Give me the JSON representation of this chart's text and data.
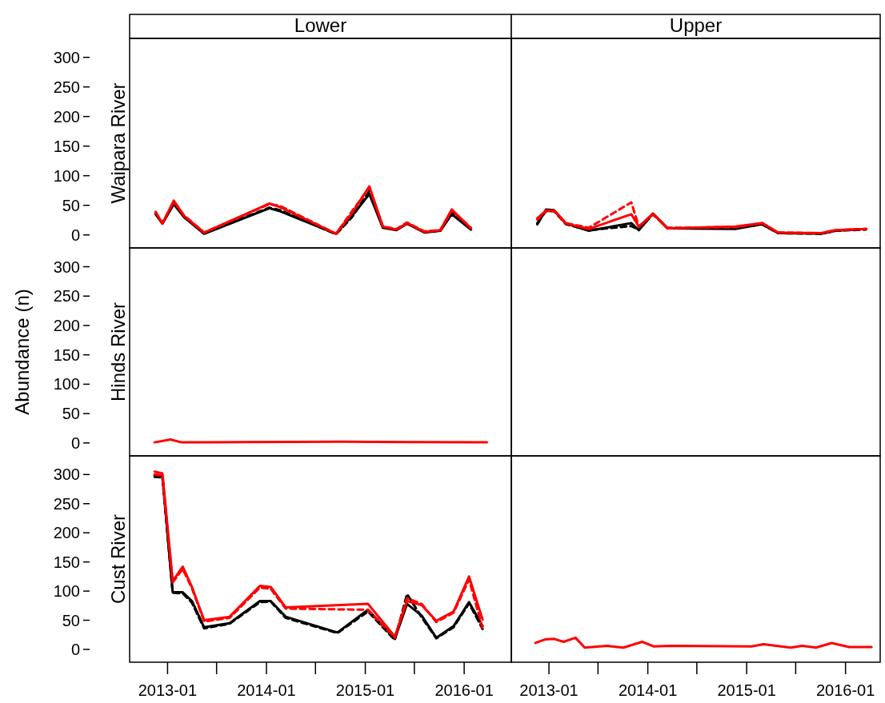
{
  "chart_data": [
    {
      "type": "line",
      "title": "Lower",
      "subtitle": "Waipara River",
      "tick_labels": "y",
      "xlim": [
        "2012-08-14",
        "2016-06-23"
      ],
      "ylim": [
        -22,
        332
      ],
      "yticks": [
        0,
        50,
        100,
        150,
        200,
        250,
        300
      ],
      "x": [
        "2012-11-18",
        "2012-12-13",
        "2013-01-24",
        "2013-03-03",
        "2013-05-16",
        "2014-01-12",
        "2014-02-20",
        "2014-09-15",
        "2014-11-13",
        "2015-01-16",
        "2015-03-07",
        "2015-04-26",
        "2015-06-04",
        "2015-08-07",
        "2015-10-05",
        "2015-11-16",
        "2016-01-26"
      ],
      "series": [
        {
          "color": "#000000",
          "line_style": "solid",
          "values": [
            35,
            19,
            52,
            30,
            2,
            45,
            40,
            2,
            32,
            69,
            12,
            8,
            19,
            4,
            7,
            35,
            9
          ]
        },
        {
          "color": "#000000",
          "line_style": "dashed",
          "values": [
            36,
            20,
            54,
            31,
            3,
            46,
            42,
            1,
            30,
            74,
            13,
            9,
            20,
            5,
            7,
            38,
            10
          ]
        },
        {
          "color": "#ff0000",
          "line_style": "solid",
          "values": [
            39,
            19,
            58,
            32,
            4,
            53,
            47,
            2,
            37,
            82,
            14,
            9,
            20,
            5,
            8,
            43,
            11
          ]
        },
        {
          "color": "#ff0000",
          "line_style": "dashed",
          "values": [
            38,
            20,
            56,
            33,
            4,
            52,
            49,
            2,
            40,
            80,
            14,
            10,
            21,
            6,
            8,
            41,
            12
          ]
        }
      ]
    },
    {
      "type": "line",
      "title": "Upper",
      "tick_labels": false,
      "xlim": [
        "2012-08-15",
        "2016-05-08"
      ],
      "ylim": [
        -22,
        332
      ],
      "x": [
        "2012-11-19",
        "2012-12-21",
        "2013-01-20",
        "2013-03-05",
        "2013-05-28",
        "2013-11-01",
        "2013-11-29",
        "2014-01-20",
        "2014-03-15",
        "2014-11-20",
        "2015-02-27",
        "2015-04-27",
        "2015-10-03",
        "2015-11-25",
        "2016-03-17"
      ],
      "series": [
        {
          "color": "#000000",
          "line_style": "solid",
          "values": [
            18,
            43,
            42,
            19,
            7,
            20,
            8,
            36,
            11,
            10,
            18,
            3,
            2,
            7,
            10
          ]
        },
        {
          "color": "#000000",
          "line_style": "dashed",
          "values": [
            20,
            40,
            40,
            18,
            8,
            15,
            9,
            35,
            11,
            11,
            18,
            3,
            2,
            7,
            9
          ]
        },
        {
          "color": "#ff0000",
          "line_style": "solid",
          "values": [
            28,
            41,
            41,
            19,
            10,
            35,
            14,
            36,
            11,
            14,
            20,
            4,
            3,
            8,
            10
          ]
        },
        {
          "color": "#ff0000",
          "line_style": "dashed",
          "values": [
            26,
            40,
            41,
            20,
            12,
            55,
            14,
            35,
            12,
            13,
            20,
            4,
            3,
            8,
            10
          ]
        }
      ]
    },
    {
      "type": "line",
      "subtitle": "Hinds River",
      "ylabel": "Abundance (n)",
      "tick_labels": "y",
      "xlim": [
        "2012-08-14",
        "2016-06-23"
      ],
      "ylim": [
        -22,
        332
      ],
      "yticks": [
        0,
        50,
        100,
        150,
        200,
        250,
        300
      ],
      "x": [
        "2012-11-14",
        "2013-01-12",
        "2013-02-21",
        "2014-10-05",
        "2016-03-25"
      ],
      "series": [
        {
          "color": "#ff0000",
          "line_style": "solid",
          "values": [
            1,
            6,
            1,
            2,
            1
          ]
        }
      ]
    },
    {
      "type": "line",
      "tick_labels": false,
      "xlim": [
        "2012-08-15",
        "2016-05-08"
      ],
      "ylim": [
        -22,
        332
      ]
    },
    {
      "type": "line",
      "subtitle": "Cust River",
      "xlim": [
        "2012-08-14",
        "2016-06-23"
      ],
      "ylim": [
        -22,
        332
      ],
      "yticks": [
        0,
        50,
        100,
        150,
        200,
        250,
        300
      ],
      "xticks": [
        {
          "value": "2013-01",
          "label": "2013-01"
        },
        {
          "value": "2013-07",
          "label": null
        },
        {
          "value": "2014-01",
          "label": "2014-01"
        },
        {
          "value": "2014-07",
          "label": null
        },
        {
          "value": "2015-01",
          "label": "2015-01"
        },
        {
          "value": "2015-07",
          "label": null
        },
        {
          "value": "2016-01",
          "label": "2016-01"
        }
      ],
      "x": [
        "2012-11-14",
        "2012-12-13",
        "2013-01-20",
        "2013-02-26",
        "2013-04-01",
        "2013-05-16",
        "2013-08-18",
        "2013-12-08",
        "2014-01-17",
        "2014-03-13",
        "2015-01-11",
        "2015-04-20",
        "2015-06-04",
        "2015-07-28",
        "2015-09-20",
        "2015-11-23",
        "2016-01-19",
        "2016-03-09"
      ],
      "series": [
        {
          "color": "#000000",
          "line_style": "solid",
          "x": [
            "2012-11-14",
            "2012-12-13",
            "2013-01-20",
            "2013-02-26",
            "2013-04-01",
            "2013-05-16",
            "2013-08-18",
            "2013-12-08",
            "2014-01-17",
            "2014-03-13",
            "2014-09-20",
            "2015-01-11",
            "2015-04-20",
            "2015-06-04",
            "2015-07-28",
            "2015-09-20",
            "2015-11-23",
            "2016-01-19",
            "2016-03-09"
          ],
          "values": [
            299,
            297,
            98,
            98,
            83,
            38,
            45,
            83,
            83,
            56,
            29,
            68,
            18,
            78,
            58,
            20,
            40,
            81,
            40
          ]
        },
        {
          "color": "#000000",
          "line_style": "dashed",
          "x": [
            "2012-11-14",
            "2012-12-13",
            "2013-01-20",
            "2013-02-26",
            "2013-04-01",
            "2013-05-16",
            "2013-08-18",
            "2013-12-08",
            "2014-01-17",
            "2014-03-13",
            "2014-09-20",
            "2015-01-11",
            "2015-04-20",
            "2015-06-04",
            "2015-07-28",
            "2015-09-20",
            "2015-11-23",
            "2016-01-19",
            "2016-03-09"
          ],
          "values": [
            296,
            295,
            97,
            96,
            80,
            36,
            44,
            81,
            82,
            54,
            28,
            65,
            16,
            95,
            55,
            19,
            38,
            79,
            35
          ]
        },
        {
          "color": "#ff0000",
          "line_style": "solid",
          "values": [
            305,
            302,
            117,
            142,
            107,
            50,
            56,
            109,
            107,
            72,
            78,
            22,
            83,
            76,
            49,
            65,
            125,
            51
          ]
        },
        {
          "color": "#ff0000",
          "line_style": "dashed",
          "values": [
            300,
            298,
            115,
            138,
            105,
            48,
            54,
            106,
            104,
            70,
            68,
            20,
            88,
            78,
            47,
            63,
            120,
            36
          ]
        }
      ]
    },
    {
      "type": "line",
      "tick_labels": "x",
      "xlim": [
        "2012-08-15",
        "2016-05-08"
      ],
      "ylim": [
        -22,
        332
      ],
      "xticks": [
        {
          "value": "2013-01",
          "label": "2013-01"
        },
        {
          "value": "2013-07",
          "label": null
        },
        {
          "value": "2014-01",
          "label": "2014-01"
        },
        {
          "value": "2014-07",
          "label": null
        },
        {
          "value": "2015-01",
          "label": "2015-01"
        },
        {
          "value": "2015-07",
          "label": null
        },
        {
          "value": "2016-01",
          "label": "2016-01"
        }
      ],
      "x": [
        "2012-11-12",
        "2012-12-17",
        "2013-01-20",
        "2013-02-24",
        "2013-04-09",
        "2013-05-13",
        "2013-08-05",
        "2013-10-03",
        "2013-12-11",
        "2014-01-24",
        "2014-03-29",
        "2015-01-19",
        "2015-03-04",
        "2015-06-12",
        "2015-07-25",
        "2015-09-13",
        "2015-11-11",
        "2016-01-14",
        "2016-04-06"
      ],
      "series": [
        {
          "color": "#ff0000",
          "line_style": "solid",
          "values": [
            11,
            17,
            18,
            13,
            20,
            3,
            6,
            3,
            13,
            5,
            6,
            5,
            9,
            3,
            6,
            3,
            11,
            4,
            4
          ]
        }
      ]
    }
  ]
}
